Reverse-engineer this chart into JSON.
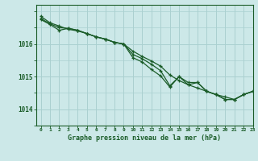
{
  "title": "Graphe pression niveau de la mer (hPa)",
  "background_color": "#cce8e8",
  "grid_color": "#aad0d0",
  "line_color": "#1a5c28",
  "xlim": [
    -0.5,
    23
  ],
  "ylim": [
    1013.5,
    1017.2
  ],
  "yticks": [
    1014,
    1015,
    1016
  ],
  "xtick_labels": [
    "0",
    "1",
    "2",
    "3",
    "4",
    "5",
    "6",
    "7",
    "8",
    "9",
    "10",
    "11",
    "12",
    "13",
    "14",
    "15",
    "16",
    "17",
    "18",
    "19",
    "20",
    "21",
    "22",
    "23"
  ],
  "series1": {
    "x": [
      0,
      1,
      2,
      3,
      4,
      5,
      6,
      7,
      8,
      9,
      10,
      11,
      12,
      13,
      14,
      15,
      16,
      17,
      18,
      19,
      20,
      21,
      22,
      23
    ],
    "y": [
      1016.85,
      1016.65,
      1016.55,
      1016.45,
      1016.4,
      1016.32,
      1016.22,
      1016.15,
      1016.05,
      1016.0,
      1015.78,
      1015.62,
      1015.48,
      1015.32,
      1015.05,
      1014.88,
      1014.75,
      1014.65,
      1014.55,
      1014.45,
      1014.38,
      1014.3,
      1014.45,
      1014.55
    ]
  },
  "series2": {
    "x": [
      0,
      1,
      2,
      3,
      4,
      5,
      6,
      7,
      8,
      9,
      10,
      11,
      12,
      13,
      14,
      15,
      16,
      17,
      18,
      19,
      20,
      21,
      22,
      23
    ],
    "y": [
      1016.75,
      1016.6,
      1016.42,
      1016.48,
      1016.42,
      1016.32,
      1016.22,
      1016.15,
      1016.05,
      1016.0,
      1015.68,
      1015.55,
      1015.38,
      1015.18,
      1014.72,
      1015.0,
      1014.82,
      1014.82,
      1014.55,
      1014.45,
      1014.3,
      1014.3,
      1014.45,
      1014.55
    ]
  },
  "series3": {
    "x": [
      0,
      1,
      2,
      3,
      4,
      5,
      6,
      7,
      8,
      9,
      10,
      11,
      12,
      13,
      14,
      15,
      16,
      17,
      18,
      19,
      20,
      21,
      22,
      23
    ],
    "y": [
      1016.78,
      1016.62,
      1016.5,
      1016.48,
      1016.42,
      1016.32,
      1016.22,
      1016.15,
      1016.05,
      1016.0,
      1015.58,
      1015.45,
      1015.22,
      1015.02,
      1014.68,
      1015.0,
      1014.75,
      1014.82,
      1014.55,
      1014.45,
      1014.3,
      1014.3,
      1014.45,
      1014.55
    ]
  }
}
